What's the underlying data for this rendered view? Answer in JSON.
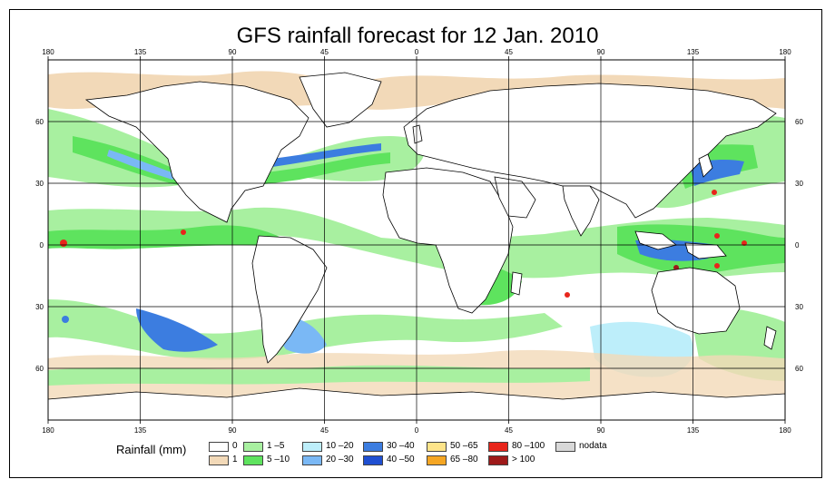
{
  "title": "GFS rainfall forecast for 12 Jan. 2010",
  "axes": {
    "top_lon_labels": [
      "180",
      "135",
      "90",
      "45",
      "0",
      "45",
      "90",
      "135",
      "180"
    ],
    "bottom_lon_labels": [
      "180",
      "135",
      "90",
      "45",
      "0",
      "45",
      "90",
      "135",
      "180"
    ],
    "left_lat_labels": [
      "60",
      "30",
      "0",
      "30",
      "60"
    ],
    "right_lat_labels": [
      "60",
      "30",
      "0",
      "30",
      "60"
    ]
  },
  "legend": {
    "title": "Rainfall (mm)",
    "items": [
      {
        "label": "0",
        "color": "#ffffff"
      },
      {
        "label": "1",
        "color": "#f2d9b8"
      },
      {
        "label": "1 –5",
        "color": "#a8f0a0"
      },
      {
        "label": "5 –10",
        "color": "#5ee35e"
      },
      {
        "label": "10 –20",
        "color": "#bdeefa"
      },
      {
        "label": "20 –30",
        "color": "#7ab8f5"
      },
      {
        "label": "30 –40",
        "color": "#3c7de0"
      },
      {
        "label": "40 –50",
        "color": "#1f4fd1"
      },
      {
        "label": "50 –65",
        "color": "#fde48a"
      },
      {
        "label": "65 –80",
        "color": "#f5a623"
      },
      {
        "label": "80 –100",
        "color": "#e8251b"
      },
      {
        "label": "> 100",
        "color": "#9e1a1a"
      },
      {
        "label": "nodata",
        "color": "#d8d8d8"
      }
    ]
  },
  "colors": {
    "ocean": "#ffffff",
    "grid": "#000000",
    "coast": "#000000"
  }
}
